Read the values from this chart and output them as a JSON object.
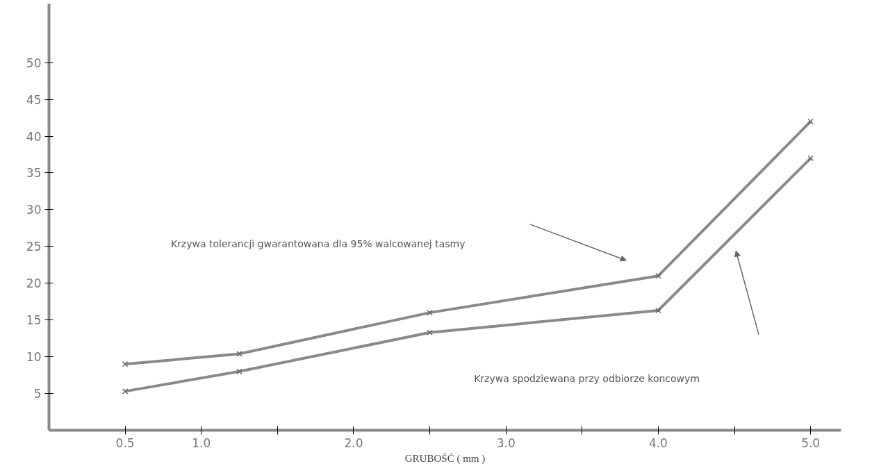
{
  "chart_data": {
    "type": "line",
    "xlabel": "GRUBOŚĆ ( mm )",
    "x": [
      0.5,
      1.25,
      2.5,
      4.0,
      5.0
    ],
    "series": [
      {
        "color": "#8a8a8a",
        "values": [
          9,
          10.4,
          16,
          21,
          42
        ]
      },
      {
        "color": "#8a8a8a",
        "values": [
          5.3,
          8,
          13.3,
          16.3,
          37
        ]
      }
    ],
    "xlim": [
      0,
      5.2
    ],
    "ylim": [
      0,
      58
    ],
    "xticks": [
      0.5,
      {
        "value": 1.0,
        "label": "1.0"
      },
      {
        "value": 1.5,
        "label": null
      },
      {
        "value": 2.0,
        "label": "2.0"
      },
      {
        "value": 2.5,
        "label": null
      },
      {
        "value": 3.0,
        "label": "3.0"
      },
      {
        "value": 3.5,
        "label": null
      },
      {
        "value": 4.0,
        "label": "4.0"
      },
      {
        "value": 4.5,
        "label": null
      },
      {
        "value": 5.0,
        "label": "5.0"
      }
    ],
    "yticks": [
      5,
      10,
      15,
      20,
      25,
      30,
      35,
      40,
      45,
      50
    ],
    "grid": false,
    "marker": "cross",
    "line_style": "solid",
    "annotations": [
      "Krzywa tolerancji gwarantowana dla 95% walcowanej tasmy",
      "Krzywa spodziewana przy odbiorze koncowym"
    ]
  }
}
